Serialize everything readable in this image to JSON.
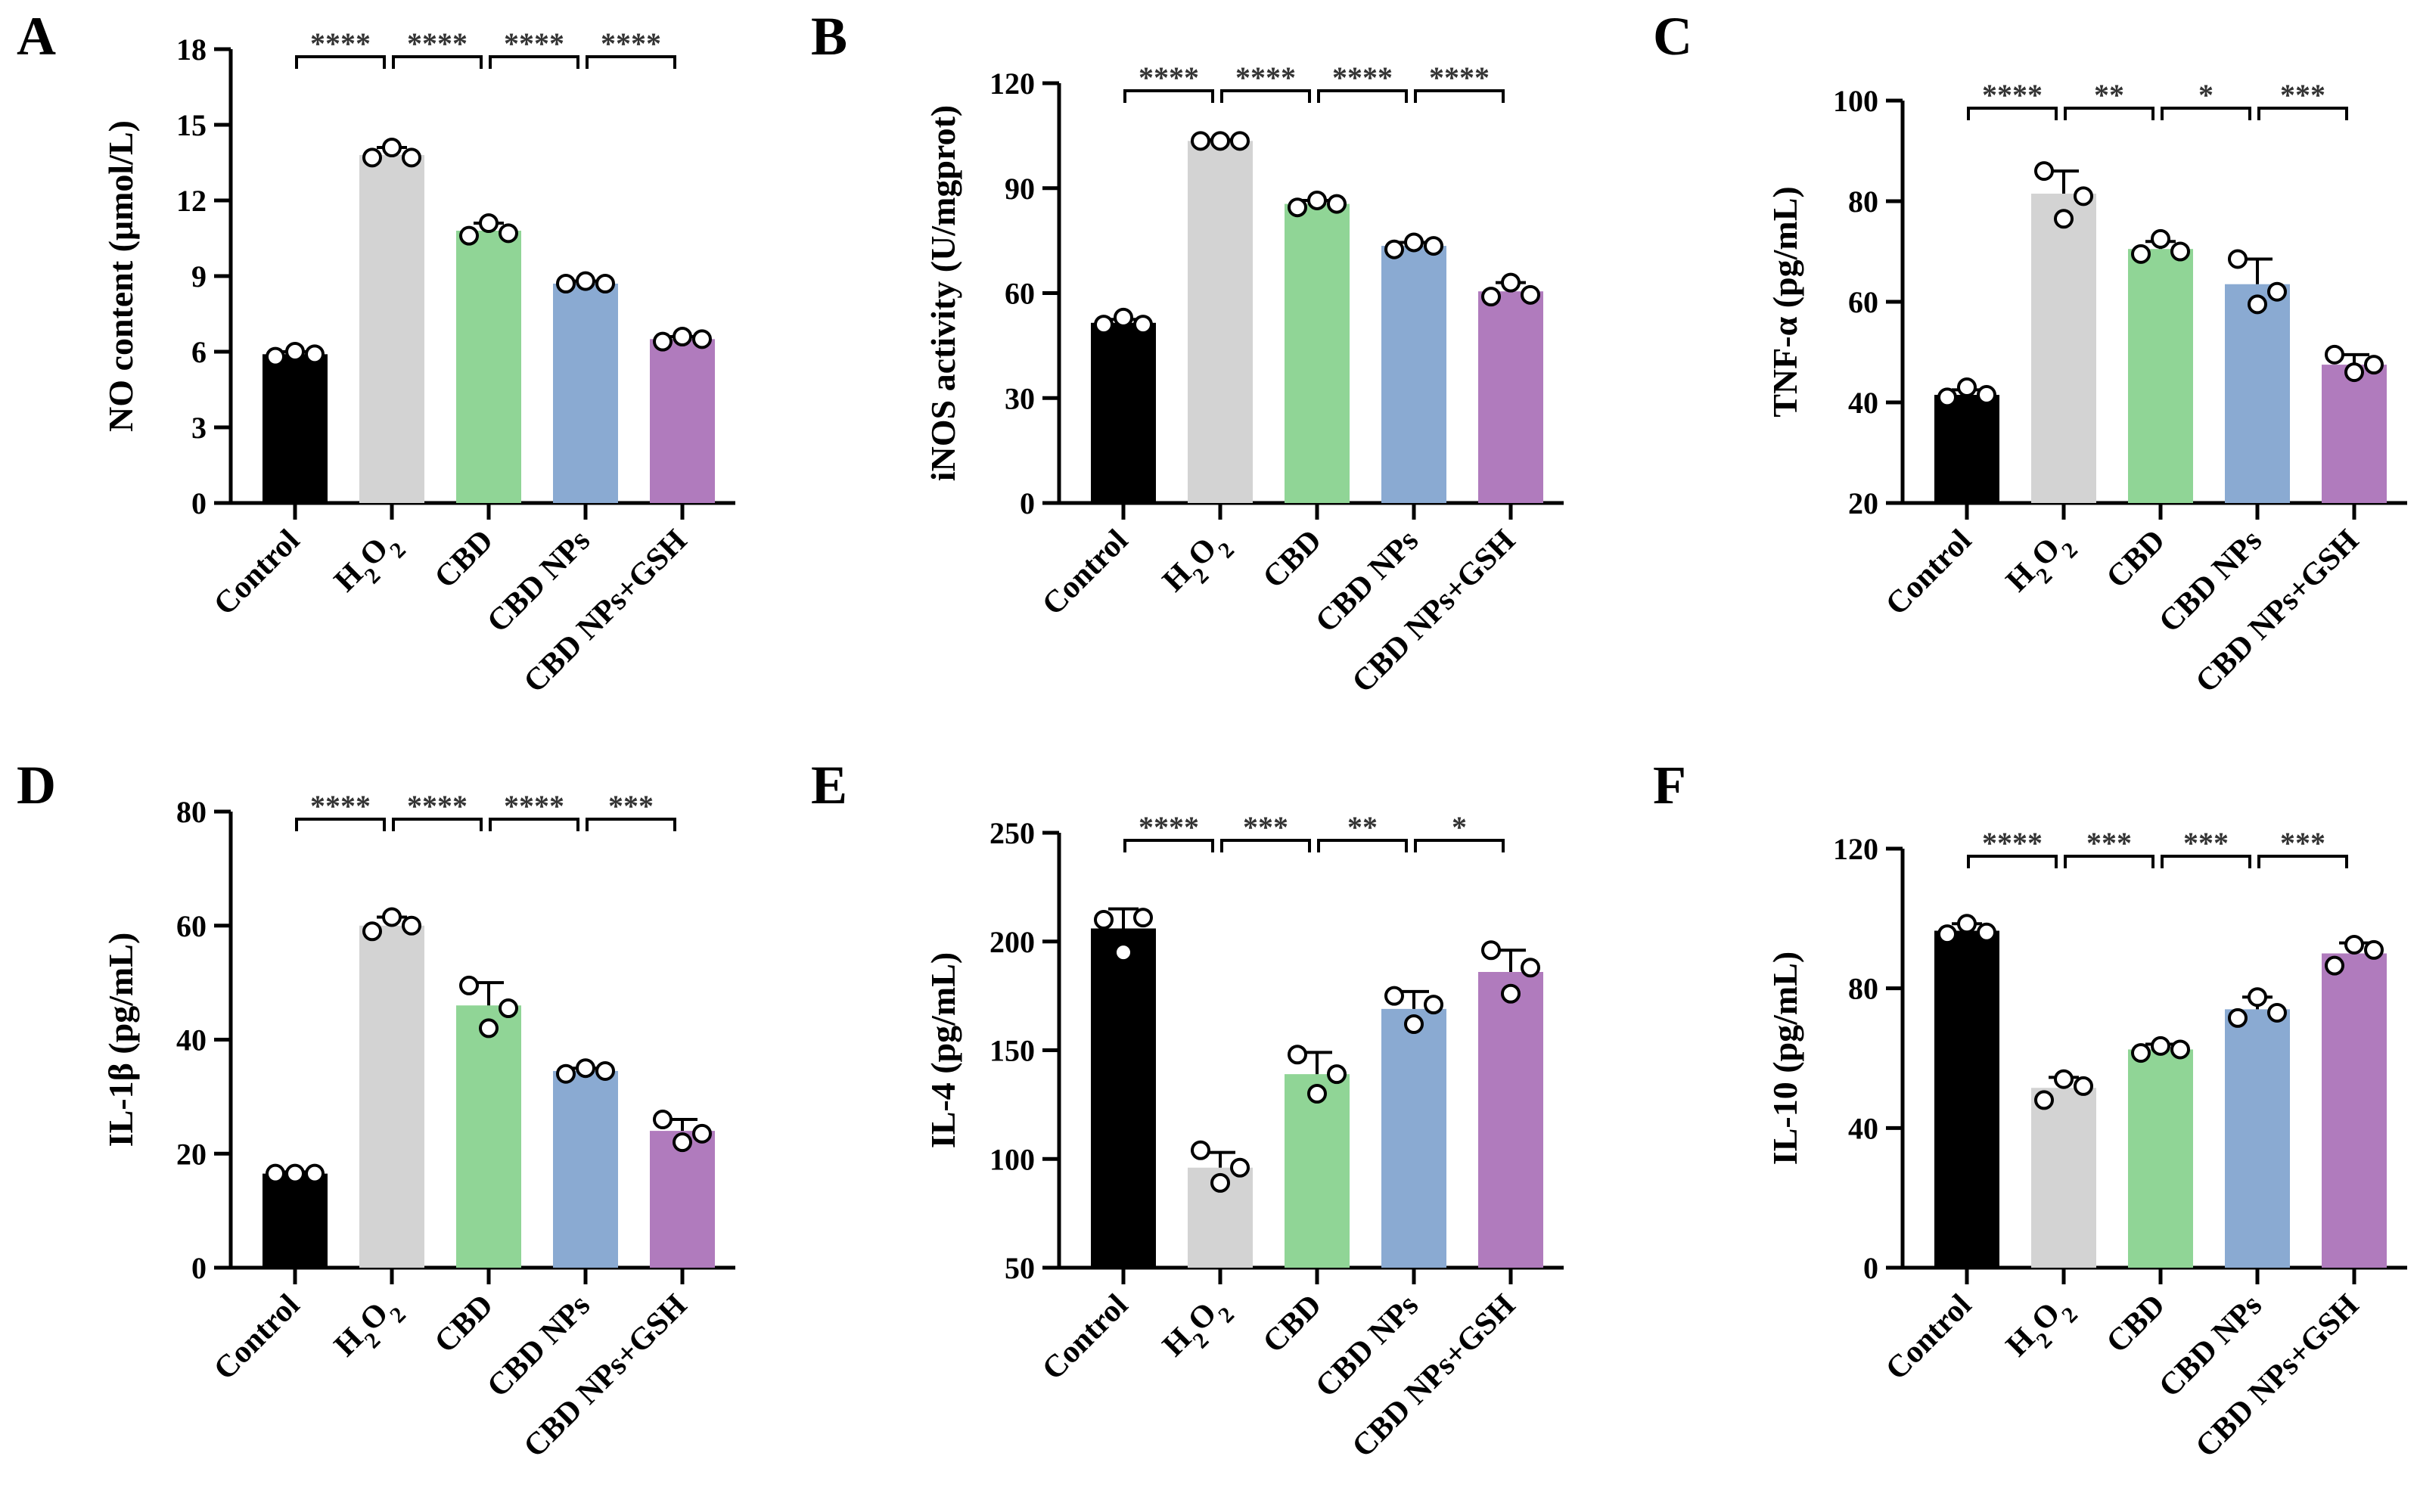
{
  "chart_data": [
    {
      "type": "bar",
      "panel": "A",
      "ylabel": "NO content (μmol/L)",
      "ylim": [
        0,
        18
      ],
      "yticks": [
        0,
        3,
        6,
        9,
        12,
        15,
        18
      ],
      "categories": [
        "Control",
        "H2O2",
        "CBD",
        "CBD NPs",
        "CBD NPs+GSH"
      ],
      "values": [
        5.9,
        13.8,
        10.8,
        8.7,
        6.5
      ],
      "errors": [
        0.1,
        0.3,
        0.3,
        0.1,
        0.1
      ],
      "points": [
        [
          5.8,
          6.0,
          5.9
        ],
        [
          13.7,
          14.1,
          13.7
        ],
        [
          10.6,
          11.1,
          10.7
        ],
        [
          8.7,
          8.8,
          8.7
        ],
        [
          6.4,
          6.6,
          6.5
        ]
      ],
      "colors": [
        "#000000",
        "#d3d3d3",
        "#90d596",
        "#8aaad2",
        "#b07bbd"
      ],
      "significance": [
        "****",
        "****",
        "****",
        "****"
      ]
    },
    {
      "type": "bar",
      "panel": "B",
      "ylabel": "iNOS activity (U/mgprot)",
      "ylim": [
        0,
        120
      ],
      "yticks": [
        0,
        30,
        60,
        90,
        120
      ],
      "categories": [
        "Control",
        "H2O2",
        "CBD",
        "CBD NPs",
        "CBD NPs+GSH"
      ],
      "values": [
        51.5,
        103.5,
        85.5,
        73.5,
        60.5
      ],
      "errors": [
        1.0,
        0.3,
        1.0,
        1.0,
        2.5
      ],
      "points": [
        [
          51.0,
          53.0,
          51.0
        ],
        [
          103.5,
          103.5,
          103.5
        ],
        [
          84.5,
          86.5,
          85.5
        ],
        [
          72.5,
          74.5,
          73.5
        ],
        [
          59.0,
          63.0,
          59.5
        ]
      ],
      "colors": [
        "#000000",
        "#d3d3d3",
        "#90d596",
        "#8aaad2",
        "#b07bbd"
      ],
      "significance": [
        "****",
        "****",
        "****",
        "****"
      ]
    },
    {
      "type": "bar",
      "panel": "C",
      "ylabel": "TNF-α (pg/mL)",
      "ylim": [
        20,
        100
      ],
      "yticks": [
        20,
        40,
        60,
        80,
        100
      ],
      "categories": [
        "Control",
        "H2O2",
        "CBD",
        "CBD NPs",
        "CBD NPs+GSH"
      ],
      "values": [
        41.5,
        81.5,
        70.5,
        63.5,
        47.5
      ],
      "errors": [
        1.0,
        4.5,
        1.5,
        5.0,
        2.0
      ],
      "points": [
        [
          41.0,
          43.0,
          41.5
        ],
        [
          86.0,
          76.5,
          81.0
        ],
        [
          69.5,
          72.5,
          70.0
        ],
        [
          68.5,
          59.5,
          62.0
        ],
        [
          49.5,
          46.0,
          47.5
        ]
      ],
      "colors": [
        "#000000",
        "#d3d3d3",
        "#90d596",
        "#8aaad2",
        "#b07bbd"
      ],
      "significance": [
        "****",
        "**",
        "*",
        "***"
      ]
    },
    {
      "type": "bar",
      "panel": "D",
      "ylabel": "IL-1β (pg/mL)",
      "ylim": [
        0,
        80
      ],
      "yticks": [
        0,
        20,
        40,
        60,
        80
      ],
      "categories": [
        "Control",
        "H2O2",
        "CBD",
        "CBD NPs",
        "CBD NPs+GSH"
      ],
      "values": [
        16.5,
        60.0,
        46.0,
        34.5,
        24.0
      ],
      "errors": [
        0.3,
        1.5,
        4.0,
        0.5,
        2.0
      ],
      "points": [
        [
          16.5,
          16.5,
          16.5
        ],
        [
          59.0,
          61.5,
          60.0
        ],
        [
          49.5,
          42.0,
          45.5
        ],
        [
          34.0,
          35.0,
          34.5
        ],
        [
          26.0,
          22.0,
          23.5
        ]
      ],
      "colors": [
        "#000000",
        "#d3d3d3",
        "#90d596",
        "#8aaad2",
        "#b07bbd"
      ],
      "significance": [
        "****",
        "****",
        "****",
        "***"
      ]
    },
    {
      "type": "bar",
      "panel": "E",
      "ylabel": "IL-4 (pg/mL)",
      "ylim": [
        50,
        250
      ],
      "yticks": [
        50,
        100,
        150,
        200,
        250
      ],
      "categories": [
        "Control",
        "H2O2",
        "CBD",
        "CBD NPs",
        "CBD NPs+GSH"
      ],
      "values": [
        206,
        96,
        139,
        169,
        186
      ],
      "errors": [
        9,
        7,
        10,
        8,
        10
      ],
      "points": [
        [
          210,
          195,
          211
        ],
        [
          104,
          89,
          96
        ],
        [
          148,
          130,
          139
        ],
        [
          175,
          162,
          171
        ],
        [
          196,
          176,
          188
        ]
      ],
      "colors": [
        "#000000",
        "#d3d3d3",
        "#90d596",
        "#8aaad2",
        "#b07bbd"
      ],
      "significance": [
        "****",
        "***",
        "**",
        "*"
      ]
    },
    {
      "type": "bar",
      "panel": "F",
      "ylabel": "IL-10 (pg/mL)",
      "ylim": [
        0,
        120
      ],
      "yticks": [
        0,
        40,
        80,
        120
      ],
      "categories": [
        "Control",
        "H2O2",
        "CBD",
        "CBD NPs",
        "CBD NPs+GSH"
      ],
      "values": [
        96.5,
        51.5,
        62.5,
        74.0,
        90.0
      ],
      "errors": [
        2.0,
        3.0,
        1.5,
        3.5,
        3.0
      ],
      "points": [
        [
          95.5,
          98.5,
          96.0
        ],
        [
          48.0,
          54.0,
          52.0
        ],
        [
          61.5,
          63.5,
          62.5
        ],
        [
          71.5,
          77.5,
          73.0
        ],
        [
          86.5,
          92.5,
          91.0
        ]
      ],
      "colors": [
        "#000000",
        "#d3d3d3",
        "#90d596",
        "#8aaad2",
        "#b07bbd"
      ],
      "significance": [
        "****",
        "***",
        "***",
        "***"
      ]
    }
  ]
}
